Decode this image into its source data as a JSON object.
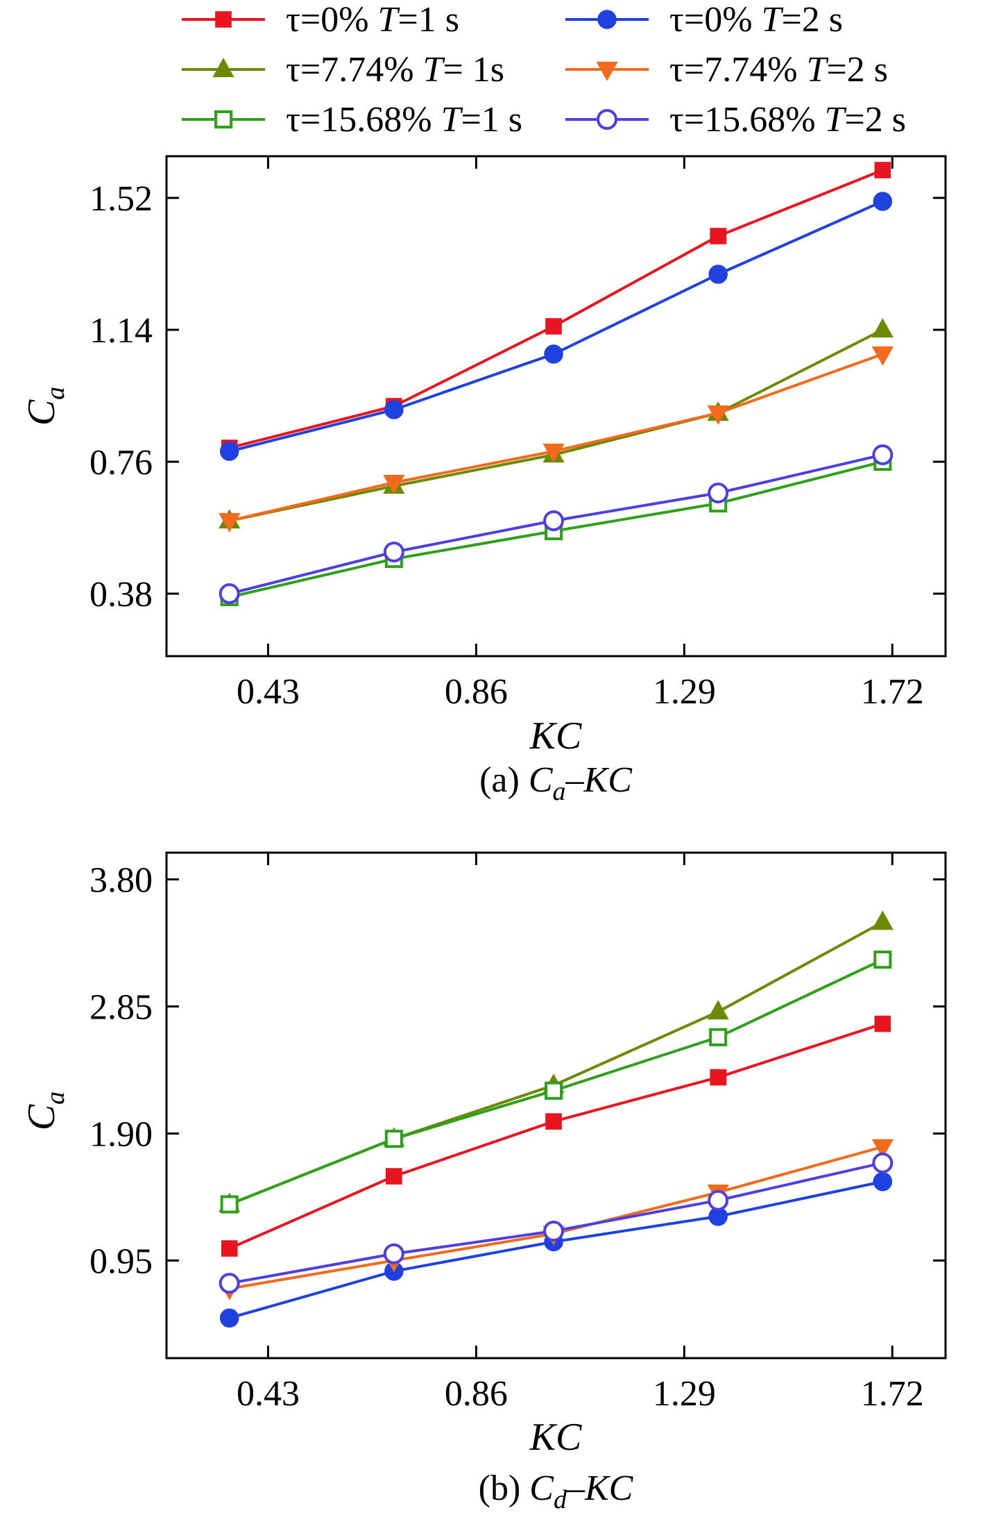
{
  "legend": {
    "entries": [
      {
        "tau": "τ=0%",
        "t_label": "T",
        "t_value": "=1 s",
        "color": "#e8141f",
        "marker": "square",
        "filled": true
      },
      {
        "tau": "τ=0%",
        "t_label": "T",
        "t_value": "=2 s",
        "color": "#1f41e0",
        "marker": "circle",
        "filled": true
      },
      {
        "tau": "τ=7.74%",
        "t_label": "T",
        "t_value": "= 1s",
        "color": "#6b8a00",
        "marker": "triangle-up",
        "filled": true
      },
      {
        "tau": "τ=7.74%",
        "t_label": "T",
        "t_value": "=2 s",
        "color": "#f26a1b",
        "marker": "triangle-down",
        "filled": true
      },
      {
        "tau": "τ=15.68%",
        "t_label": "T",
        "t_value": "=1 s",
        "color": "#2ea01b",
        "marker": "square",
        "filled": false
      },
      {
        "tau": "τ=15.68%",
        "t_label": "T",
        "t_value": "=2 s",
        "color": "#4f3fe0",
        "marker": "circle",
        "filled": false
      }
    ]
  },
  "chart_data": [
    {
      "type": "line",
      "title": "",
      "caption": {
        "prefix": "(a) ",
        "var": "C",
        "sub": "a",
        "suffix": "–KC"
      },
      "ylabel": {
        "main": "C",
        "sub": "a"
      },
      "xlabel": "KC",
      "xlim": [
        0.22,
        1.83
      ],
      "ylim": [
        0.2,
        1.64
      ],
      "xticks": [
        0.43,
        0.86,
        1.29,
        1.72
      ],
      "xtick_labels": [
        "0.43",
        "0.86",
        "1.29",
        "1.72"
      ],
      "yticks": [
        0.38,
        0.76,
        1.14,
        1.52
      ],
      "ytick_labels": [
        "0.38",
        "0.76",
        "1.14",
        "1.52"
      ],
      "x": [
        0.35,
        0.69,
        1.02,
        1.36,
        1.7
      ],
      "series": [
        {
          "name": "τ=0% T=1 s",
          "values": [
            0.8,
            0.92,
            1.15,
            1.41,
            1.6
          ]
        },
        {
          "name": "τ=0% T=2 s",
          "values": [
            0.79,
            0.91,
            1.07,
            1.3,
            1.51
          ]
        },
        {
          "name": "τ=7.74% T= 1s",
          "values": [
            0.59,
            0.69,
            0.78,
            0.9,
            1.14
          ]
        },
        {
          "name": "τ=7.74% T=2 s",
          "values": [
            0.59,
            0.7,
            0.79,
            0.9,
            1.07
          ]
        },
        {
          "name": "τ=15.68% T=1 s",
          "values": [
            0.37,
            0.48,
            0.56,
            0.64,
            0.76
          ]
        },
        {
          "name": "τ=15.68% T=2 s",
          "values": [
            0.38,
            0.5,
            0.59,
            0.67,
            0.78
          ]
        }
      ]
    },
    {
      "type": "line",
      "title": "",
      "caption": {
        "prefix": "(b) ",
        "var": "C",
        "sub": "d",
        "suffix": "–KC"
      },
      "ylabel": {
        "main": "C",
        "sub": "a"
      },
      "xlabel": "KC",
      "xlim": [
        0.22,
        1.83
      ],
      "ylim": [
        0.22,
        4.0
      ],
      "xticks": [
        0.43,
        0.86,
        1.29,
        1.72
      ],
      "xtick_labels": [
        "0.43",
        "0.86",
        "1.29",
        "1.72"
      ],
      "yticks": [
        0.95,
        1.9,
        2.85,
        3.8
      ],
      "ytick_labels": [
        "0.95",
        "1.90",
        "2.85",
        "3.80"
      ],
      "x": [
        0.35,
        0.69,
        1.02,
        1.36,
        1.7
      ],
      "series": [
        {
          "name": "τ=0% T=1 s",
          "values": [
            1.04,
            1.58,
            1.99,
            2.32,
            2.72
          ]
        },
        {
          "name": "τ=0% T=2 s",
          "values": [
            0.52,
            0.87,
            1.09,
            1.28,
            1.54
          ]
        },
        {
          "name": "τ=7.74% T= 1s",
          "values": [
            1.37,
            1.86,
            2.26,
            2.81,
            3.48
          ]
        },
        {
          "name": "τ=7.74% T=2 s",
          "values": [
            0.74,
            0.95,
            1.15,
            1.46,
            1.8
          ]
        },
        {
          "name": "τ=15.68% T=1 s",
          "values": [
            1.37,
            1.86,
            2.22,
            2.62,
            3.2
          ]
        },
        {
          "name": "τ=15.68% T=2 s",
          "values": [
            0.78,
            1.0,
            1.17,
            1.4,
            1.68
          ]
        }
      ]
    }
  ]
}
